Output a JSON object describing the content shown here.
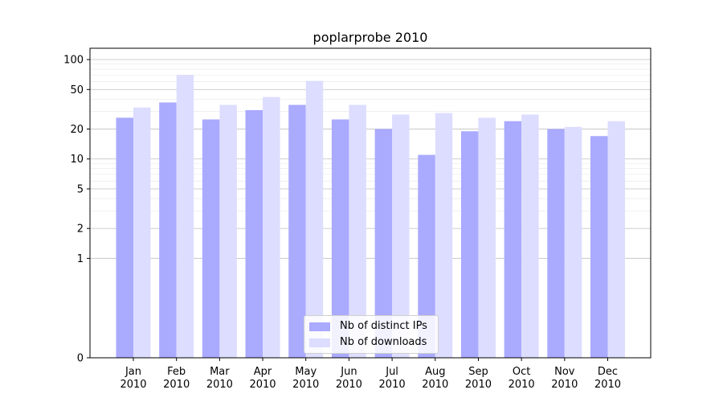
{
  "chart_data": {
    "type": "bar",
    "title": "poplarprobe 2010",
    "xlabel": "",
    "ylabel": "",
    "y_scale": "symlog",
    "y_linthresh": 1,
    "ylim": [
      0,
      130
    ],
    "yticks": [
      0,
      1,
      2,
      5,
      10,
      20,
      50,
      100
    ],
    "grid": true,
    "legend_position": "bottom-center",
    "categories": [
      "Jan\n2010",
      "Feb\n2010",
      "Mar\n2010",
      "Apr\n2010",
      "May\n2010",
      "Jun\n2010",
      "Jul\n2010",
      "Aug\n2010",
      "Sep\n2010",
      "Oct\n2010",
      "Nov\n2010",
      "Dec\n2010"
    ],
    "series": [
      {
        "name": "Nb of distinct IPs",
        "color": "#aaaaff",
        "values": [
          26,
          37,
          25,
          31,
          35,
          25,
          20,
          11,
          19,
          24,
          20,
          17
        ]
      },
      {
        "name": "Nb of downloads",
        "color": "#ddddff",
        "values": [
          33,
          70,
          35,
          42,
          61,
          35,
          28,
          29,
          26,
          28,
          21,
          24
        ]
      }
    ]
  }
}
